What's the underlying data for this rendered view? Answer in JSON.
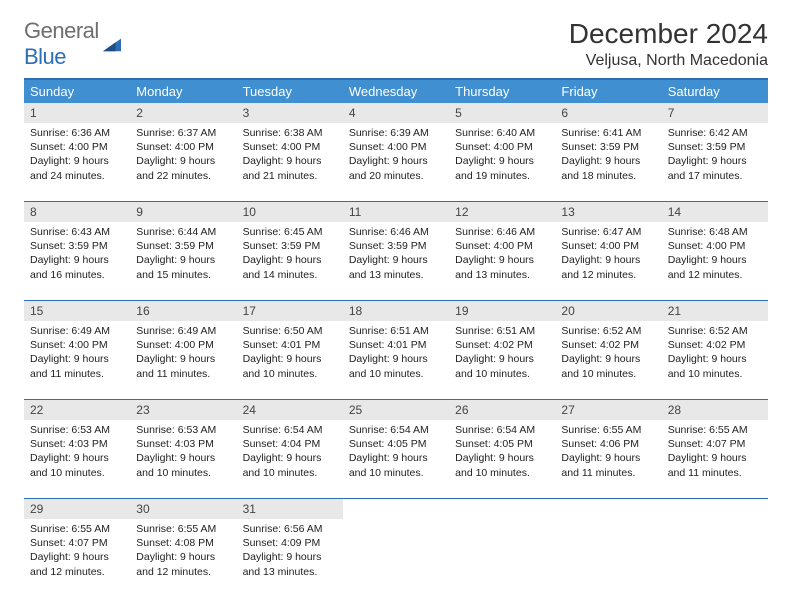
{
  "logo": {
    "general": "General",
    "blue": "Blue"
  },
  "title": "December 2024",
  "location": "Veljusa, North Macedonia",
  "colors": {
    "header_bg": "#3f8fd1",
    "header_text": "#ffffff",
    "accent_border": "#2d6fb5",
    "daynum_bg": "#e8e8e8",
    "body_text": "#222222",
    "logo_gray": "#6e6e6e",
    "logo_blue": "#2d6fb5"
  },
  "daynames": [
    "Sunday",
    "Monday",
    "Tuesday",
    "Wednesday",
    "Thursday",
    "Friday",
    "Saturday"
  ],
  "weeks": [
    [
      {
        "n": "1",
        "sr": "Sunrise: 6:36 AM",
        "ss": "Sunset: 4:00 PM",
        "d1": "Daylight: 9 hours",
        "d2": "and 24 minutes."
      },
      {
        "n": "2",
        "sr": "Sunrise: 6:37 AM",
        "ss": "Sunset: 4:00 PM",
        "d1": "Daylight: 9 hours",
        "d2": "and 22 minutes."
      },
      {
        "n": "3",
        "sr": "Sunrise: 6:38 AM",
        "ss": "Sunset: 4:00 PM",
        "d1": "Daylight: 9 hours",
        "d2": "and 21 minutes."
      },
      {
        "n": "4",
        "sr": "Sunrise: 6:39 AM",
        "ss": "Sunset: 4:00 PM",
        "d1": "Daylight: 9 hours",
        "d2": "and 20 minutes."
      },
      {
        "n": "5",
        "sr": "Sunrise: 6:40 AM",
        "ss": "Sunset: 4:00 PM",
        "d1": "Daylight: 9 hours",
        "d2": "and 19 minutes."
      },
      {
        "n": "6",
        "sr": "Sunrise: 6:41 AM",
        "ss": "Sunset: 3:59 PM",
        "d1": "Daylight: 9 hours",
        "d2": "and 18 minutes."
      },
      {
        "n": "7",
        "sr": "Sunrise: 6:42 AM",
        "ss": "Sunset: 3:59 PM",
        "d1": "Daylight: 9 hours",
        "d2": "and 17 minutes."
      }
    ],
    [
      {
        "n": "8",
        "sr": "Sunrise: 6:43 AM",
        "ss": "Sunset: 3:59 PM",
        "d1": "Daylight: 9 hours",
        "d2": "and 16 minutes."
      },
      {
        "n": "9",
        "sr": "Sunrise: 6:44 AM",
        "ss": "Sunset: 3:59 PM",
        "d1": "Daylight: 9 hours",
        "d2": "and 15 minutes."
      },
      {
        "n": "10",
        "sr": "Sunrise: 6:45 AM",
        "ss": "Sunset: 3:59 PM",
        "d1": "Daylight: 9 hours",
        "d2": "and 14 minutes."
      },
      {
        "n": "11",
        "sr": "Sunrise: 6:46 AM",
        "ss": "Sunset: 3:59 PM",
        "d1": "Daylight: 9 hours",
        "d2": "and 13 minutes."
      },
      {
        "n": "12",
        "sr": "Sunrise: 6:46 AM",
        "ss": "Sunset: 4:00 PM",
        "d1": "Daylight: 9 hours",
        "d2": "and 13 minutes."
      },
      {
        "n": "13",
        "sr": "Sunrise: 6:47 AM",
        "ss": "Sunset: 4:00 PM",
        "d1": "Daylight: 9 hours",
        "d2": "and 12 minutes."
      },
      {
        "n": "14",
        "sr": "Sunrise: 6:48 AM",
        "ss": "Sunset: 4:00 PM",
        "d1": "Daylight: 9 hours",
        "d2": "and 12 minutes."
      }
    ],
    [
      {
        "n": "15",
        "sr": "Sunrise: 6:49 AM",
        "ss": "Sunset: 4:00 PM",
        "d1": "Daylight: 9 hours",
        "d2": "and 11 minutes."
      },
      {
        "n": "16",
        "sr": "Sunrise: 6:49 AM",
        "ss": "Sunset: 4:00 PM",
        "d1": "Daylight: 9 hours",
        "d2": "and 11 minutes."
      },
      {
        "n": "17",
        "sr": "Sunrise: 6:50 AM",
        "ss": "Sunset: 4:01 PM",
        "d1": "Daylight: 9 hours",
        "d2": "and 10 minutes."
      },
      {
        "n": "18",
        "sr": "Sunrise: 6:51 AM",
        "ss": "Sunset: 4:01 PM",
        "d1": "Daylight: 9 hours",
        "d2": "and 10 minutes."
      },
      {
        "n": "19",
        "sr": "Sunrise: 6:51 AM",
        "ss": "Sunset: 4:02 PM",
        "d1": "Daylight: 9 hours",
        "d2": "and 10 minutes."
      },
      {
        "n": "20",
        "sr": "Sunrise: 6:52 AM",
        "ss": "Sunset: 4:02 PM",
        "d1": "Daylight: 9 hours",
        "d2": "and 10 minutes."
      },
      {
        "n": "21",
        "sr": "Sunrise: 6:52 AM",
        "ss": "Sunset: 4:02 PM",
        "d1": "Daylight: 9 hours",
        "d2": "and 10 minutes."
      }
    ],
    [
      {
        "n": "22",
        "sr": "Sunrise: 6:53 AM",
        "ss": "Sunset: 4:03 PM",
        "d1": "Daylight: 9 hours",
        "d2": "and 10 minutes."
      },
      {
        "n": "23",
        "sr": "Sunrise: 6:53 AM",
        "ss": "Sunset: 4:03 PM",
        "d1": "Daylight: 9 hours",
        "d2": "and 10 minutes."
      },
      {
        "n": "24",
        "sr": "Sunrise: 6:54 AM",
        "ss": "Sunset: 4:04 PM",
        "d1": "Daylight: 9 hours",
        "d2": "and 10 minutes."
      },
      {
        "n": "25",
        "sr": "Sunrise: 6:54 AM",
        "ss": "Sunset: 4:05 PM",
        "d1": "Daylight: 9 hours",
        "d2": "and 10 minutes."
      },
      {
        "n": "26",
        "sr": "Sunrise: 6:54 AM",
        "ss": "Sunset: 4:05 PM",
        "d1": "Daylight: 9 hours",
        "d2": "and 10 minutes."
      },
      {
        "n": "27",
        "sr": "Sunrise: 6:55 AM",
        "ss": "Sunset: 4:06 PM",
        "d1": "Daylight: 9 hours",
        "d2": "and 11 minutes."
      },
      {
        "n": "28",
        "sr": "Sunrise: 6:55 AM",
        "ss": "Sunset: 4:07 PM",
        "d1": "Daylight: 9 hours",
        "d2": "and 11 minutes."
      }
    ],
    [
      {
        "n": "29",
        "sr": "Sunrise: 6:55 AM",
        "ss": "Sunset: 4:07 PM",
        "d1": "Daylight: 9 hours",
        "d2": "and 12 minutes."
      },
      {
        "n": "30",
        "sr": "Sunrise: 6:55 AM",
        "ss": "Sunset: 4:08 PM",
        "d1": "Daylight: 9 hours",
        "d2": "and 12 minutes."
      },
      {
        "n": "31",
        "sr": "Sunrise: 6:56 AM",
        "ss": "Sunset: 4:09 PM",
        "d1": "Daylight: 9 hours",
        "d2": "and 13 minutes."
      },
      null,
      null,
      null,
      null
    ]
  ]
}
